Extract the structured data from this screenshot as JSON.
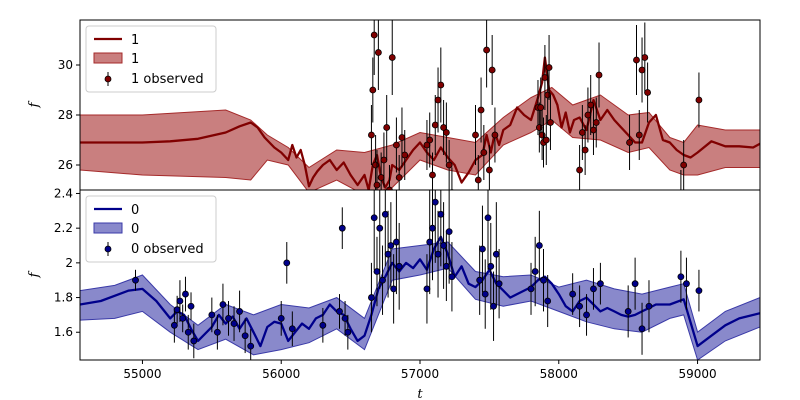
{
  "chart_data": [
    {
      "type": "line",
      "panel": "top",
      "ylabel": "f",
      "xlabel": "",
      "xlim": [
        54550,
        59450
      ],
      "ylim": [
        25.0,
        31.8
      ],
      "yticks": [
        26,
        28,
        30
      ],
      "show_xtick_labels": false,
      "legend": {
        "placement": "top-left",
        "entries": [
          "1",
          "1",
          "1 observed"
        ]
      },
      "colors": {
        "line": "#800000",
        "band": "#a52a2a",
        "points": "#800000"
      },
      "series": [
        {
          "name": "1",
          "kind": "mean",
          "x": [
            54550,
            54800,
            55000,
            55200,
            55400,
            55600,
            55700,
            55780,
            55830,
            55880,
            55950,
            56000,
            56050,
            56080,
            56110,
            56140,
            56170,
            56200,
            56230,
            56260,
            56300,
            56350,
            56400,
            56450,
            56500,
            56550,
            56600,
            56630,
            56660,
            56690,
            56720,
            56750,
            56780,
            56800,
            56850,
            56900,
            56950,
            57000,
            57050,
            57100,
            57150,
            57200,
            57250,
            57300,
            57350,
            57400,
            57450,
            57480,
            57510,
            57540,
            57570,
            57600,
            57650,
            57700,
            57750,
            57800,
            57850,
            57880,
            57900,
            57930,
            57960,
            57990,
            58020,
            58050,
            58080,
            58110,
            58150,
            58200,
            58250,
            58300,
            58350,
            58400,
            58450,
            58500,
            58550,
            58600,
            58650,
            58700,
            58750,
            58800,
            58850,
            58900,
            58950,
            59000,
            59100,
            59200,
            59300,
            59400,
            59450
          ],
          "y": [
            26.9,
            26.9,
            26.9,
            26.95,
            27.05,
            27.3,
            27.55,
            27.7,
            27.5,
            27.1,
            26.7,
            26.5,
            26.2,
            26.8,
            26.3,
            26.6,
            26.0,
            25.15,
            25.5,
            25.75,
            26.0,
            26.2,
            25.8,
            26.1,
            25.6,
            25.2,
            25.6,
            25.0,
            26.0,
            26.4,
            25.5,
            25.1,
            25.4,
            26.0,
            25.8,
            26.2,
            26.6,
            26.9,
            26.5,
            26.2,
            26.7,
            26.3,
            26.0,
            25.3,
            25.7,
            26.2,
            26.4,
            27.2,
            26.5,
            27.3,
            26.8,
            27.4,
            27.6,
            28.3,
            28.0,
            27.8,
            28.7,
            29.3,
            30.3,
            29.0,
            28.8,
            28.4,
            27.5,
            28.1,
            27.3,
            27.8,
            27.9,
            27.4,
            28.6,
            27.8,
            28.2,
            27.8,
            27.5,
            27.2,
            26.9,
            26.9,
            27.7,
            28.0,
            27.0,
            26.9,
            26.6,
            26.4,
            26.3,
            26.5,
            26.95,
            26.75,
            26.75,
            26.7,
            26.85
          ]
        },
        {
          "name": "1",
          "kind": "band",
          "x": [
            54550,
            55000,
            55300,
            55600,
            55780,
            55900,
            56050,
            56200,
            56400,
            56600,
            56800,
            57000,
            57200,
            57400,
            57600,
            57800,
            57950,
            58100,
            58300,
            58500,
            58650,
            58800,
            58900,
            59000,
            59200,
            59450
          ],
          "y_low": [
            25.8,
            25.6,
            25.55,
            25.5,
            25.4,
            26.2,
            26.0,
            24.9,
            25.4,
            24.8,
            25.1,
            26.2,
            25.8,
            25.6,
            26.8,
            27.3,
            27.8,
            27.1,
            27.0,
            26.5,
            26.7,
            25.8,
            25.6,
            25.6,
            25.9,
            25.9
          ],
          "y_high": [
            28.0,
            28.0,
            28.1,
            28.2,
            27.8,
            27.2,
            26.7,
            25.9,
            26.6,
            26.5,
            26.8,
            27.3,
            27.1,
            26.9,
            27.9,
            28.7,
            29.1,
            28.4,
            28.8,
            28.0,
            28.1,
            27.1,
            26.9,
            27.6,
            27.4,
            27.4
          ]
        },
        {
          "name": "1 observed",
          "kind": "observed",
          "x": [
            56650,
            56660,
            56670,
            56680,
            56690,
            56700,
            56720,
            56740,
            56760,
            56780,
            56800,
            56830,
            56850,
            56870,
            56890,
            57050,
            57070,
            57090,
            57110,
            57130,
            57150,
            57170,
            57190,
            57210,
            57230,
            57400,
            57420,
            57440,
            57460,
            57480,
            57500,
            57520,
            57540,
            57850,
            57860,
            57870,
            57880,
            57890,
            57900,
            57910,
            57920,
            57930,
            57940,
            58150,
            58170,
            58190,
            58210,
            58230,
            58250,
            58270,
            58290,
            58510,
            58560,
            58580,
            58600,
            58620,
            58640,
            58880,
            58900,
            59010
          ],
          "y": [
            27.2,
            29.0,
            31.2,
            26.0,
            25.2,
            30.5,
            25.5,
            26.2,
            27.5,
            25.0,
            30.3,
            26.8,
            25.5,
            27.1,
            26.4,
            26.8,
            27.0,
            25.6,
            27.6,
            28.6,
            29.2,
            27.5,
            27.3,
            26.0,
            24.9,
            27.2,
            25.4,
            28.2,
            26.5,
            30.6,
            25.8,
            29.8,
            27.2,
            28.3,
            27.5,
            28.3,
            27.2,
            26.9,
            29.5,
            27.0,
            28.8,
            29.9,
            27.7,
            25.8,
            27.3,
            26.6,
            28.0,
            28.4,
            27.4,
            27.7,
            29.6,
            26.9,
            30.2,
            27.2,
            29.8,
            30.3,
            28.9,
            24.8,
            26.0,
            28.6
          ],
          "err": [
            1.2,
            1.3,
            1.6,
            1.2,
            1.4,
            1.5,
            1.0,
            1.1,
            1.3,
            1.0,
            1.5,
            1.1,
            0.9,
            1.2,
            1.0,
            1.0,
            1.1,
            0.9,
            1.2,
            1.3,
            1.5,
            1.1,
            1.2,
            1.0,
            1.0,
            1.2,
            1.0,
            1.3,
            1.1,
            1.5,
            1.0,
            1.4,
            1.1,
            1.1,
            1.0,
            1.2,
            1.0,
            1.0,
            1.3,
            1.0,
            1.2,
            1.3,
            1.1,
            1.0,
            1.1,
            1.0,
            1.1,
            1.2,
            1.0,
            1.0,
            1.3,
            1.1,
            1.4,
            1.0,
            1.3,
            1.4,
            1.2,
            1.0,
            1.0,
            1.1
          ]
        }
      ]
    },
    {
      "type": "line",
      "panel": "bottom",
      "ylabel": "f",
      "xlabel": "t",
      "xlim": [
        54550,
        59450
      ],
      "ylim": [
        1.44,
        2.42
      ],
      "yticks": [
        1.6,
        1.8,
        2.0,
        2.2,
        2.4
      ],
      "xticks": [
        55000,
        56000,
        57000,
        58000,
        59000
      ],
      "show_xtick_labels": true,
      "legend": {
        "placement": "top-left",
        "entries": [
          "0",
          "0",
          "0 observed"
        ]
      },
      "colors": {
        "line": "#00008b",
        "band": "#3a3aa8",
        "points": "#00008b"
      },
      "series": [
        {
          "name": "0",
          "kind": "mean",
          "x": [
            54550,
            54700,
            54900,
            55000,
            55100,
            55200,
            55250,
            55300,
            55350,
            55400,
            55500,
            55550,
            55600,
            55650,
            55700,
            55750,
            55800,
            55850,
            55900,
            55950,
            56000,
            56050,
            56100,
            56150,
            56200,
            56250,
            56300,
            56350,
            56400,
            56450,
            56500,
            56550,
            56600,
            56650,
            56700,
            56750,
            56800,
            56850,
            56900,
            56950,
            57000,
            57050,
            57100,
            57150,
            57200,
            57250,
            57300,
            57350,
            57400,
            57450,
            57500,
            57550,
            57600,
            57650,
            57700,
            57750,
            57800,
            57850,
            57900,
            57950,
            58000,
            58050,
            58100,
            58150,
            58200,
            58250,
            58300,
            58350,
            58400,
            58450,
            58500,
            58550,
            58600,
            58650,
            58700,
            58800,
            58900,
            59000,
            59100,
            59200,
            59300,
            59450
          ],
          "y": [
            1.76,
            1.78,
            1.84,
            1.85,
            1.78,
            1.68,
            1.72,
            1.7,
            1.62,
            1.55,
            1.63,
            1.7,
            1.65,
            1.69,
            1.62,
            1.68,
            1.6,
            1.52,
            1.63,
            1.66,
            1.65,
            1.55,
            1.6,
            1.65,
            1.62,
            1.68,
            1.7,
            1.76,
            1.72,
            1.7,
            1.62,
            1.55,
            1.58,
            1.7,
            1.85,
            1.92,
            2.0,
            1.95,
            2.0,
            1.97,
            2.02,
            1.96,
            2.08,
            2.15,
            2.05,
            1.92,
            1.98,
            1.88,
            1.86,
            1.9,
            1.96,
            1.88,
            1.84,
            1.8,
            1.82,
            1.84,
            1.86,
            1.9,
            1.92,
            1.88,
            1.82,
            1.75,
            1.72,
            1.78,
            1.8,
            1.76,
            1.72,
            1.74,
            1.72,
            1.7,
            1.69,
            1.7,
            1.72,
            1.74,
            1.76,
            1.76,
            1.79,
            1.52,
            1.58,
            1.64,
            1.68,
            1.71
          ]
        },
        {
          "name": "0",
          "kind": "band",
          "x": [
            54550,
            54800,
            55000,
            55200,
            55400,
            55600,
            55800,
            56000,
            56200,
            56400,
            56600,
            56800,
            57000,
            57200,
            57400,
            57600,
            57800,
            58000,
            58200,
            58400,
            58600,
            58800,
            58900,
            59000,
            59200,
            59450
          ],
          "y_low": [
            1.67,
            1.68,
            1.72,
            1.6,
            1.5,
            1.56,
            1.47,
            1.5,
            1.54,
            1.62,
            1.5,
            1.9,
            1.93,
            1.97,
            1.79,
            1.75,
            1.78,
            1.72,
            1.66,
            1.62,
            1.6,
            1.68,
            1.7,
            1.44,
            1.55,
            1.63
          ],
          "y_high": [
            1.84,
            1.87,
            1.93,
            1.76,
            1.64,
            1.76,
            1.7,
            1.76,
            1.74,
            1.8,
            1.68,
            2.08,
            2.1,
            2.12,
            1.95,
            1.92,
            1.93,
            1.86,
            1.9,
            1.85,
            1.82,
            1.86,
            1.88,
            1.6,
            1.72,
            1.8
          ]
        },
        {
          "name": "0 observed",
          "kind": "observed",
          "x": [
            54950,
            55230,
            55250,
            55270,
            55290,
            55310,
            55330,
            55350,
            55370,
            55500,
            55540,
            55580,
            55620,
            55660,
            55700,
            55740,
            55780,
            56000,
            56040,
            56080,
            56300,
            56420,
            56440,
            56460,
            56480,
            56650,
            56670,
            56690,
            56710,
            56730,
            56750,
            56770,
            56790,
            56810,
            56830,
            56850,
            57050,
            57070,
            57090,
            57110,
            57130,
            57150,
            57170,
            57190,
            57210,
            57230,
            57430,
            57450,
            57470,
            57490,
            57510,
            57530,
            57550,
            57570,
            57800,
            57830,
            57860,
            57890,
            57920,
            58100,
            58150,
            58200,
            58250,
            58300,
            58500,
            58550,
            58600,
            58650,
            58880,
            58920,
            59010
          ],
          "y": [
            1.9,
            1.64,
            1.73,
            1.78,
            1.68,
            1.82,
            1.6,
            1.75,
            1.55,
            1.7,
            1.6,
            1.76,
            1.68,
            1.65,
            1.72,
            1.58,
            1.52,
            1.68,
            2.0,
            1.62,
            1.64,
            1.72,
            2.2,
            1.68,
            1.6,
            1.8,
            2.26,
            1.95,
            2.2,
            1.9,
            2.28,
            2.05,
            2.1,
            1.85,
            2.12,
            1.98,
            1.85,
            2.12,
            2.2,
            2.35,
            2.05,
            2.28,
            2.1,
            1.98,
            2.18,
            1.92,
            1.9,
            2.08,
            1.82,
            2.26,
            1.98,
            1.75,
            2.05,
            1.88,
            1.85,
            1.95,
            2.1,
            1.9,
            1.78,
            1.82,
            1.75,
            1.7,
            1.85,
            1.88,
            1.72,
            1.88,
            1.62,
            1.75,
            1.92,
            1.88,
            1.84
          ],
          "err": [
            0.06,
            0.1,
            0.08,
            0.12,
            0.08,
            0.1,
            0.1,
            0.08,
            0.1,
            0.1,
            0.1,
            0.12,
            0.1,
            0.1,
            0.12,
            0.1,
            0.1,
            0.1,
            0.12,
            0.1,
            0.1,
            0.1,
            0.12,
            0.1,
            0.1,
            0.2,
            0.3,
            0.2,
            0.35,
            0.2,
            0.3,
            0.25,
            0.25,
            0.2,
            0.3,
            0.25,
            0.2,
            0.3,
            0.3,
            0.35,
            0.25,
            0.3,
            0.25,
            0.2,
            0.3,
            0.2,
            0.2,
            0.25,
            0.2,
            0.3,
            0.25,
            0.2,
            0.3,
            0.2,
            0.15,
            0.2,
            0.2,
            0.18,
            0.15,
            0.12,
            0.12,
            0.12,
            0.12,
            0.12,
            0.15,
            0.15,
            0.15,
            0.15,
            0.15,
            0.15,
            0.12
          ]
        }
      ]
    }
  ]
}
